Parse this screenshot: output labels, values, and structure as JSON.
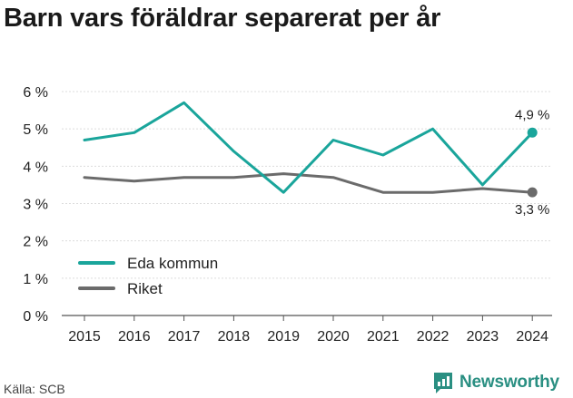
{
  "title": "Barn vars föräldrar separerat per år",
  "source": "Källa: SCB",
  "brand": "Newsworthy",
  "chart_data": {
    "type": "line",
    "x": [
      "2015",
      "2016",
      "2017",
      "2018",
      "2019",
      "2020",
      "2021",
      "2022",
      "2023",
      "2024"
    ],
    "ylim": [
      0,
      6
    ],
    "y_ticks": [
      "0 %",
      "1 %",
      "2 %",
      "3 %",
      "4 %",
      "5 %",
      "6 %"
    ],
    "grid": true,
    "legend_position": "bottom-left",
    "series": [
      {
        "name": "Eda kommun",
        "color": "#1aa59b",
        "values": [
          4.7,
          4.9,
          5.7,
          4.4,
          3.3,
          4.7,
          4.3,
          5.0,
          3.5,
          4.9
        ],
        "end_label": "4,9 %"
      },
      {
        "name": "Riket",
        "color": "#6b6b6b",
        "values": [
          3.7,
          3.6,
          3.7,
          3.7,
          3.8,
          3.7,
          3.3,
          3.3,
          3.4,
          3.3
        ],
        "end_label": "3,3 %"
      }
    ]
  }
}
